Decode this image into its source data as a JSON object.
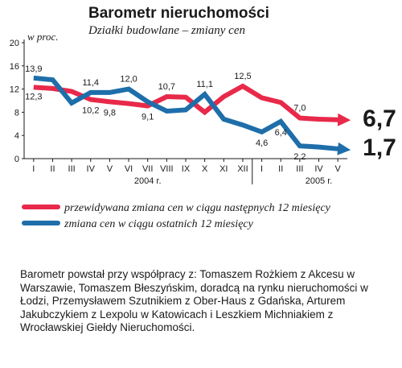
{
  "chart_data": {
    "type": "line",
    "title": "Barometr nieruchomości",
    "subtitle": "Działki budowlane – zmiany cen",
    "ylabel": "w proc.",
    "ylim": [
      0,
      20
    ],
    "yticks": [
      0,
      4,
      8,
      12,
      16,
      20
    ],
    "grid": false,
    "categories": [
      "I",
      "II",
      "III",
      "IV",
      "V",
      "VI",
      "VII",
      "VIII",
      "IX",
      "X",
      "XI",
      "XII",
      "I",
      "II",
      "III",
      "IV",
      "V"
    ],
    "year_labels": [
      {
        "label": "2004 r.",
        "at": "VII"
      },
      {
        "label": "2005 r.",
        "at": "IV"
      }
    ],
    "legend_position": "bottom",
    "series": [
      {
        "name": "przewidywana zmiana cen w ciągu następnych 12 miesięcy",
        "color": "#e8294a",
        "values": [
          12.3,
          12.1,
          11.6,
          10.2,
          9.8,
          9.5,
          9.1,
          10.7,
          10.6,
          8.0,
          10.7,
          12.5,
          10.5,
          9.7,
          7.0,
          6.8,
          6.7
        ],
        "labels": {
          "0": "12,3",
          "3": "10,2",
          "4": "9,8",
          "6": "9,1",
          "7": "10,7",
          "11": "12,5",
          "14": "7,0"
        },
        "end_label": "6,7"
      },
      {
        "name": "zmiana cen w ciągu ostatnich 12 miesięcy",
        "color": "#1e6eaa",
        "values": [
          13.9,
          13.6,
          9.6,
          11.4,
          11.4,
          12.0,
          9.8,
          8.2,
          8.4,
          11.1,
          6.8,
          5.8,
          4.6,
          6.4,
          2.2,
          2.0,
          1.7
        ],
        "labels": {
          "0": "13,9",
          "3": "11,4",
          "5": "12,0",
          "9": "11,1",
          "12": "4,6",
          "13": "6,4",
          "14": "2,2"
        },
        "end_label": "1,7"
      }
    ]
  },
  "footnote": "Barometr powstał przy współpracy z: Tomaszem Rożkiem z Akcesu w Warszawie, Tomaszem Błeszyńskim, doradcą na rynku nieruchomości w Łodzi, Przemysławem Szutnikiem z Ober-Haus z Gdańska, Arturem Jakubczykiem z Lexpolu w Katowicach i Leszkiem Michniakiem z Wrocławskiej Giełdy Nieruchomości."
}
